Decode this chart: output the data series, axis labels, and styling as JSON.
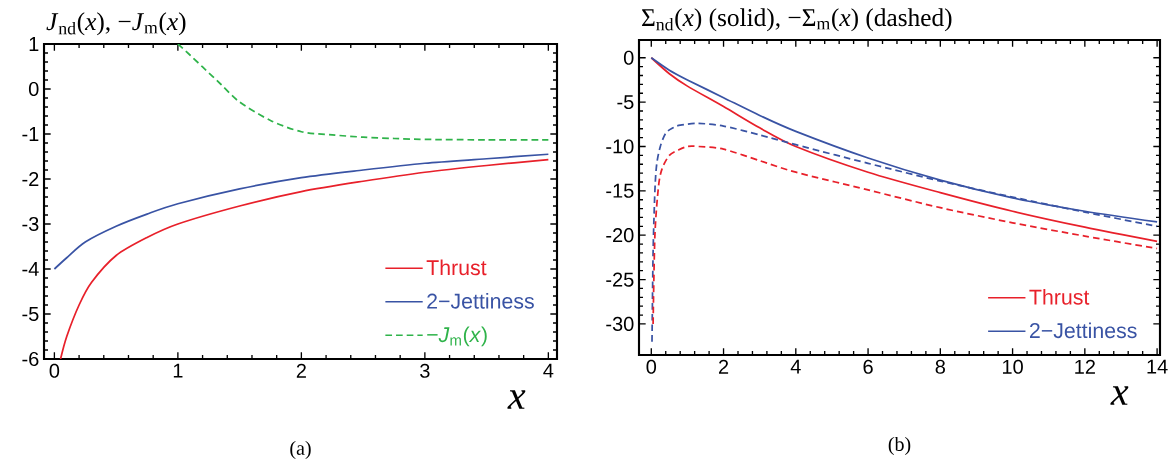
{
  "chart_data": [
    {
      "type": "line",
      "title": "*J*$_{nd}$(*x*), −*J*$_{m}$(*x*)",
      "xlabel": "x",
      "annotations": [
        "(a)"
      ],
      "xlim": [
        -0.084,
        4.07
      ],
      "ylim": [
        -6,
        1
      ],
      "xticks": [
        0,
        1,
        2,
        3,
        4
      ],
      "yticks": [
        -6,
        -5,
        -4,
        -3,
        -2,
        -1,
        0,
        1
      ],
      "legend": "bottom right",
      "grid": false,
      "marker": "none",
      "series": [
        {
          "name": "Thrust",
          "color": "#e8202a",
          "line_style": "solid",
          "x": [
            0.05,
            0.1,
            0.2,
            0.3,
            0.5,
            0.75,
            1,
            1.5,
            2,
            2.5,
            3,
            3.5,
            4
          ],
          "values": [
            -6.0,
            -5.5,
            -4.8,
            -4.3,
            -3.7,
            -3.3,
            -3.0,
            -2.6,
            -2.28,
            -2.05,
            -1.85,
            -1.7,
            -1.57
          ]
        },
        {
          "name": "2−Jettiness",
          "color": "#3953a4",
          "line_style": "solid",
          "x": [
            0,
            0.1,
            0.25,
            0.5,
            0.75,
            1,
            1.5,
            2,
            2.5,
            3,
            3.5,
            4
          ],
          "values": [
            -4.0,
            -3.75,
            -3.4,
            -3.05,
            -2.78,
            -2.55,
            -2.22,
            -1.97,
            -1.8,
            -1.65,
            -1.55,
            -1.45
          ]
        },
        {
          "name": "−*J*$_{m}$(*x*)",
          "color": "#2fb34a",
          "line_style": "dashed",
          "x": [
            1,
            1.1,
            1.2,
            1.35,
            1.5,
            1.75,
            2,
            2.25,
            2.5,
            2.75,
            3,
            3.5,
            4
          ],
          "values": [
            1.0,
            0.75,
            0.49,
            0.1,
            -0.29,
            -0.7,
            -0.95,
            -1.02,
            -1.07,
            -1.1,
            -1.12,
            -1.13,
            -1.13
          ]
        }
      ]
    },
    {
      "type": "line",
      "title": "Σ$_{nd}$(*x*) (solid), −Σ$_{m}$(*x*) (dashed)",
      "xlabel": "x",
      "annotations": [
        "(b)"
      ],
      "xlim": [
        -0.34,
        14.08
      ],
      "ylim": [
        -33.5,
        2
      ],
      "xticks": [
        0,
        2,
        4,
        6,
        8,
        10,
        12,
        14
      ],
      "yticks": [
        -30,
        -25,
        -20,
        -15,
        -10,
        -5,
        0
      ],
      "legend": "bottom right",
      "grid": false,
      "marker": "none",
      "series": [
        {
          "name": "Thrust",
          "color": "#e8202a",
          "line_style": "solid",
          "x": [
            0,
            0.5,
            1,
            2,
            3,
            4,
            6,
            8,
            10,
            12,
            14
          ],
          "values": [
            0,
            -1.8,
            -3.2,
            -5.5,
            -7.9,
            -10.0,
            -12.9,
            -15.2,
            -17.3,
            -19.1,
            -20.7
          ]
        },
        {
          "name": "2−Jettiness",
          "color": "#3953a4",
          "line_style": "solid",
          "x": [
            0,
            0.5,
            1,
            2,
            3,
            4,
            6,
            8,
            10,
            12,
            14
          ],
          "values": [
            0,
            -1.4,
            -2.5,
            -4.5,
            -6.5,
            -8.3,
            -11.3,
            -13.8,
            -15.8,
            -17.3,
            -18.5
          ]
        },
        {
          "color": "#3953a4",
          "line_style": "dashed",
          "x": [
            0.02,
            0.05,
            0.1,
            0.15,
            0.25,
            0.4,
            0.6,
            0.8,
            1.3,
            2,
            3,
            4,
            6,
            8,
            10,
            12,
            14
          ],
          "values": [
            -32,
            -22,
            -15,
            -12,
            -10,
            -8.5,
            -7.9,
            -7.6,
            -7.4,
            -7.7,
            -8.7,
            -9.8,
            -11.9,
            -13.9,
            -15.7,
            -17.4,
            -19.0
          ]
        },
        {
          "color": "#e8202a",
          "line_style": "dashed",
          "x": [
            0.05,
            0.1,
            0.2,
            0.3,
            0.5,
            0.75,
            1,
            1.3,
            2,
            3,
            4,
            6,
            8,
            10,
            12,
            14
          ],
          "values": [
            -30,
            -20,
            -14.5,
            -12.5,
            -11,
            -10.4,
            -10.0,
            -10.0,
            -10.3,
            -11.6,
            -12.9,
            -14.9,
            -16.9,
            -18.6,
            -20.1,
            -21.5
          ]
        }
      ]
    }
  ]
}
